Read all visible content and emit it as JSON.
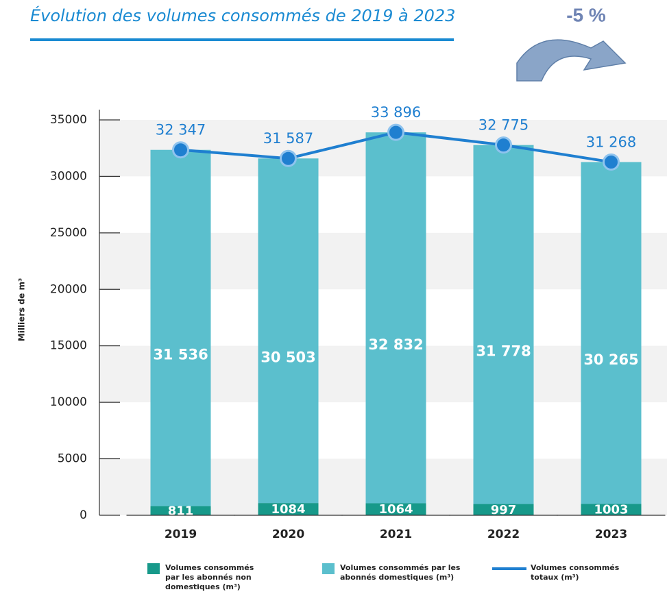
{
  "chart_data": {
    "type": "stacked-bar-line",
    "title": "Évolution des volumes consommés de 2019 à 2023",
    "annotation": "-5 %",
    "y_label": "Milliers de m³",
    "categories": [
      "2019",
      "2020",
      "2021",
      "2022",
      "2023"
    ],
    "series": [
      {
        "name": "Volumes consommés par les abonnés non domestiques (m³)",
        "color": "#17998a",
        "values": [
          811,
          1084,
          1064,
          997,
          1003
        ]
      },
      {
        "name": "Volumes consommés par les abonnés domestiques (m³)",
        "color": "#5bbfcd",
        "values": [
          31536,
          30503,
          32832,
          31778,
          30265
        ],
        "value_labels": [
          "31 536",
          "30 503",
          "32 832",
          "31 778",
          "30 265"
        ]
      },
      {
        "name": "Volumes consommés totaux (m³)",
        "color": "#1f7fd0",
        "type": "line",
        "values": [
          32347,
          31587,
          33896,
          32775,
          31268
        ],
        "value_labels": [
          "32 347",
          "31 587",
          "33 896",
          "32 775",
          "31 268"
        ]
      }
    ],
    "ylim": [
      0,
      37000
    ],
    "yticks": [
      0,
      5000,
      10000,
      15000,
      20000,
      25000,
      30000,
      35000
    ],
    "grid": "bands"
  }
}
